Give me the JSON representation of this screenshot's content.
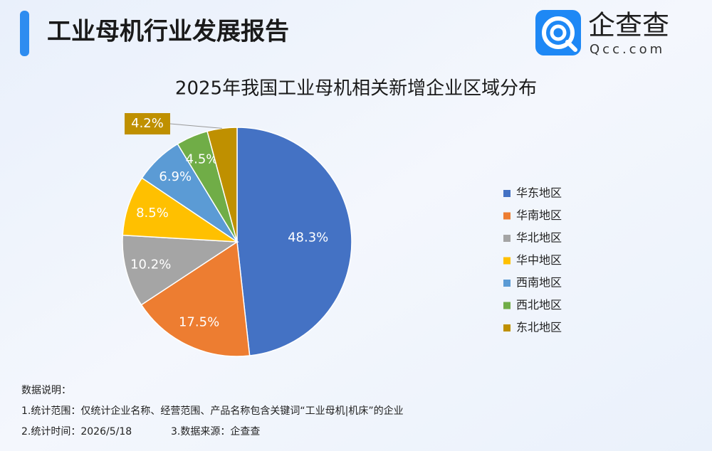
{
  "header": {
    "title": "工业母机行业发展报告",
    "logo_text": "企查查",
    "logo_sub": "Qcc.com"
  },
  "chart_data": {
    "type": "pie",
    "title": "2025年我国工业母机相关新增企业区域分布",
    "categories": [
      "华东地区",
      "华南地区",
      "华北地区",
      "华中地区",
      "西南地区",
      "西北地区",
      "东北地区"
    ],
    "values": [
      48.3,
      17.5,
      10.2,
      8.5,
      6.9,
      4.5,
      4.2
    ],
    "value_labels": [
      "48.3%",
      "17.5%",
      "10.2%",
      "8.5%",
      "6.9%",
      "4.5%",
      "4.2%"
    ],
    "colors": [
      "#4472c4",
      "#ed7d31",
      "#a5a5a5",
      "#ffc000",
      "#5b9bd5",
      "#70ad47",
      "#bf9000"
    ],
    "legend": "right"
  },
  "notes": {
    "heading": "数据说明：",
    "scope": "1.统计范围：仅统计企业名称、经营范围、产品名称包含关键词“工业母机|机床”的企业",
    "time": "2.统计时间：2026/5/18",
    "source": "3.数据来源：企查查"
  }
}
